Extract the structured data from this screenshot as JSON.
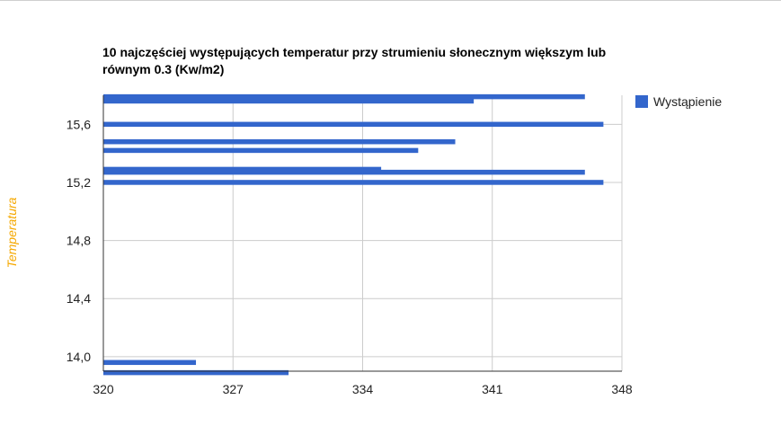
{
  "chart_data": {
    "type": "bar",
    "orientation": "horizontal",
    "title": "10 najczęściej występujących temperatur przy strumieniu słonecznym większym lub równym 0.3 (Kw/m2)",
    "title_lines": [
      "10 najczęściej występujących temperatur przy strumieniu słonecznym większym lub",
      "równym 0.3 (Kw/m2)"
    ],
    "xlabel": "",
    "ylabel": "Temperatura",
    "xlim": [
      320,
      348
    ],
    "ylim": [
      13.9,
      15.8
    ],
    "x_ticks": [
      "320",
      "327",
      "334",
      "341",
      "348"
    ],
    "x_tick_values": [
      320,
      327,
      334,
      341,
      348
    ],
    "y_ticks": [
      "14,0",
      "14,4",
      "14,8",
      "15,2",
      "15,6"
    ],
    "y_tick_values": [
      14.0,
      14.4,
      14.8,
      15.2,
      15.6
    ],
    "grid": true,
    "legend_position": "right",
    "series": [
      {
        "name": "Wystąpienie",
        "color": "#3366cc",
        "points": [
          {
            "y": 13.89,
            "value": 330
          },
          {
            "y": 13.96,
            "value": 325
          },
          {
            "y": 15.2,
            "value": 347
          },
          {
            "y": 15.27,
            "value": 346
          },
          {
            "y": 15.29,
            "value": 335
          },
          {
            "y": 15.42,
            "value": 337
          },
          {
            "y": 15.48,
            "value": 339
          },
          {
            "y": 15.6,
            "value": 347
          },
          {
            "y": 15.76,
            "value": 340
          },
          {
            "y": 15.79,
            "value": 346
          }
        ]
      }
    ],
    "ylabel_color": "#f5a800",
    "axis_color": "#333333",
    "grid_color": "#cccccc"
  }
}
